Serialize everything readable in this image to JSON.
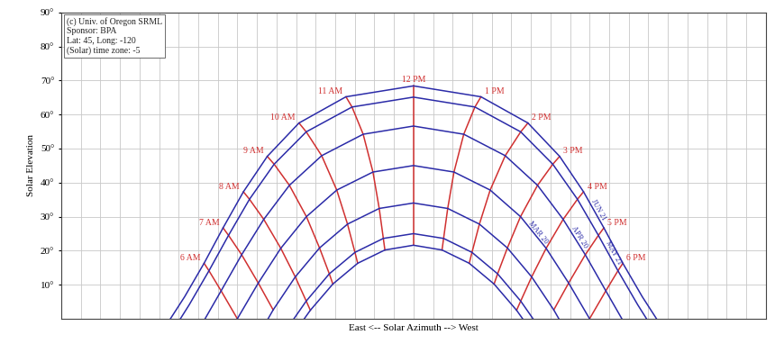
{
  "chart_data": {
    "type": "line",
    "ylabel": "Solar Elevation",
    "xlabel": "East <-- Solar Azimuth --> West",
    "xlim": [
      0,
      360
    ],
    "ylim": [
      0,
      90
    ],
    "xticks": [
      0,
      10,
      20,
      30,
      40,
      50,
      60,
      70,
      80,
      90,
      100,
      110,
      120,
      130,
      140,
      150,
      160,
      170,
      180,
      190,
      200,
      210,
      220,
      230,
      240,
      250,
      260,
      270,
      280,
      290,
      300,
      310,
      320,
      330,
      340,
      350,
      360
    ],
    "yticks": [
      {
        "value": 10,
        "label": "10°"
      },
      {
        "value": 20,
        "label": "20°"
      },
      {
        "value": 30,
        "label": "30°"
      },
      {
        "value": 40,
        "label": "40°"
      },
      {
        "value": 50,
        "label": "50°"
      },
      {
        "value": 60,
        "label": "60°"
      },
      {
        "value": 70,
        "label": "70°"
      },
      {
        "value": 80,
        "label": "80°"
      },
      {
        "value": 90,
        "label": "90°"
      }
    ],
    "grid": true,
    "tick_labels": "y",
    "annotations": [
      "(c) Univ. of Oregon SRML",
      "Sponsor: BPA",
      "Lat: 45, Long: -120",
      "(Solar) time zone: -5"
    ],
    "hour_lines": {
      "color": "#d03030"
    },
    "series": [
      {
        "name": "JUN 21",
        "color": "#2b2ba8",
        "x": [
          55.8,
          63.1,
          73.0,
          82.7,
          93.1,
          105.3,
          121.5,
          145.5,
          180,
          214.5,
          238.5,
          254.7,
          266.9,
          277.3,
          287.0,
          296.9,
          304.2
        ],
        "values": [
          0,
          6.5,
          16.3,
          26.7,
          37.3,
          47.7,
          57.5,
          65.2,
          68.4,
          65.2,
          57.5,
          47.7,
          37.3,
          26.7,
          16.3,
          6.5,
          0
        ],
        "hours": [
          null,
          null,
          "6 AM",
          "7 AM",
          "8 AM",
          "9 AM",
          "10 AM",
          "11 AM",
          "12 PM",
          "1 PM",
          "2 PM",
          "3 PM",
          "4 PM",
          "5 PM",
          "6 PM",
          null,
          null
        ]
      },
      {
        "name": "MAY 21",
        "color": "#2b2ba8",
        "x": [
          60.9,
          65.4,
          75.5,
          85.5,
          96.2,
          108.8,
          125.2,
          148.6,
          180,
          211.4,
          234.8,
          251.2,
          263.8,
          274.5,
          284.5,
          294.6,
          299.1
        ],
        "values": [
          0,
          4.1,
          14.1,
          24.5,
          35.1,
          45.4,
          54.9,
          62.2,
          65.1,
          62.2,
          54.9,
          45.4,
          35.1,
          24.5,
          14.1,
          4.1,
          0
        ],
        "hours": [
          null,
          null,
          "6 AM",
          "7 AM",
          "8 AM",
          "9 AM",
          "10 AM",
          "11 AM",
          "12 PM",
          "1 PM",
          "2 PM",
          "3 PM",
          "4 PM",
          "5 PM",
          "6 PM",
          null,
          null
        ]
      },
      {
        "name": "APR 20",
        "color": "#2b2ba8",
        "x": [
          73.5,
          81.7,
          92.2,
          103.5,
          116.6,
          133.1,
          154.3,
          180,
          205.7,
          226.9,
          243.4,
          256.5,
          267.8,
          278.3,
          286.5
        ],
        "values": [
          0,
          8.2,
          18.8,
          29.2,
          39.2,
          47.9,
          54.2,
          56.6,
          54.2,
          47.9,
          39.2,
          29.2,
          18.8,
          8.2,
          0
        ],
        "hours": [
          null,
          "6 AM",
          "7 AM",
          "8 AM",
          "9 AM",
          "10 AM",
          "11 AM",
          "12 PM",
          "1 PM",
          "2 PM",
          "3 PM",
          "4 PM",
          "5 PM",
          "6 PM",
          null
        ]
      },
      {
        "name": "MAR 20",
        "color": "#2b2ba8",
        "x": [
          90,
          100.7,
          112.2,
          125.3,
          140.8,
          159.3,
          180,
          200.7,
          219.2,
          234.7,
          247.8,
          259.3,
          270
        ],
        "values": [
          0,
          10.5,
          20.7,
          30.0,
          37.8,
          43.1,
          45.0,
          43.1,
          37.8,
          30.0,
          20.7,
          10.5,
          0
        ],
        "hours": [
          "6 AM",
          "7 AM",
          "8 AM",
          "9 AM",
          "10 AM",
          "11 AM",
          "12 PM",
          "1 PM",
          "2 PM",
          "3 PM",
          "4 PM",
          "5 PM",
          "6 PM"
        ]
      },
      {
        "color": "#2b2ba8",
        "x": [
          105.7,
          108.3,
          119.6,
          132.0,
          146.3,
          162.5,
          180,
          197.5,
          213.7,
          228.0,
          240.4,
          251.7,
          254.3
        ],
        "values": [
          0,
          2.6,
          12.3,
          20.8,
          27.8,
          32.4,
          34.0,
          32.4,
          27.8,
          20.8,
          12.3,
          2.6,
          0
        ],
        "hours": [
          null,
          "7 AM",
          "8 AM",
          "9 AM",
          "10 AM",
          "11 AM",
          "12 PM",
          "1 PM",
          "2 PM",
          "3 PM",
          "4 PM",
          "5 PM",
          null
        ]
      },
      {
        "color": "#2b2ba8",
        "x": [
          118.9,
          125.2,
          137.0,
          150.1,
          164.6,
          180,
          195.4,
          209.9,
          223.0,
          234.8,
          241.1
        ],
        "values": [
          0,
          5.2,
          13.2,
          19.5,
          23.6,
          25.0,
          23.6,
          19.5,
          13.2,
          5.2,
          0
        ],
        "hours": [
          null,
          "8 AM",
          "9 AM",
          "10 AM",
          "11 AM",
          "12 PM",
          "1 PM",
          "2 PM",
          "3 PM",
          "4 PM",
          null
        ]
      },
      {
        "color": "#2b2ba8",
        "x": [
          124.2,
          127.3,
          138.8,
          151.5,
          165.4,
          180,
          194.6,
          208.5,
          221.2,
          232.7,
          235.8
        ],
        "values": [
          0,
          2.5,
          10.2,
          16.3,
          20.2,
          21.6,
          20.2,
          16.3,
          10.2,
          2.5,
          0
        ],
        "hours": [
          null,
          "8 AM",
          "9 AM",
          "10 AM",
          "11 AM",
          "12 PM",
          "1 PM",
          "2 PM",
          "3 PM",
          "4 PM",
          null
        ]
      }
    ]
  }
}
